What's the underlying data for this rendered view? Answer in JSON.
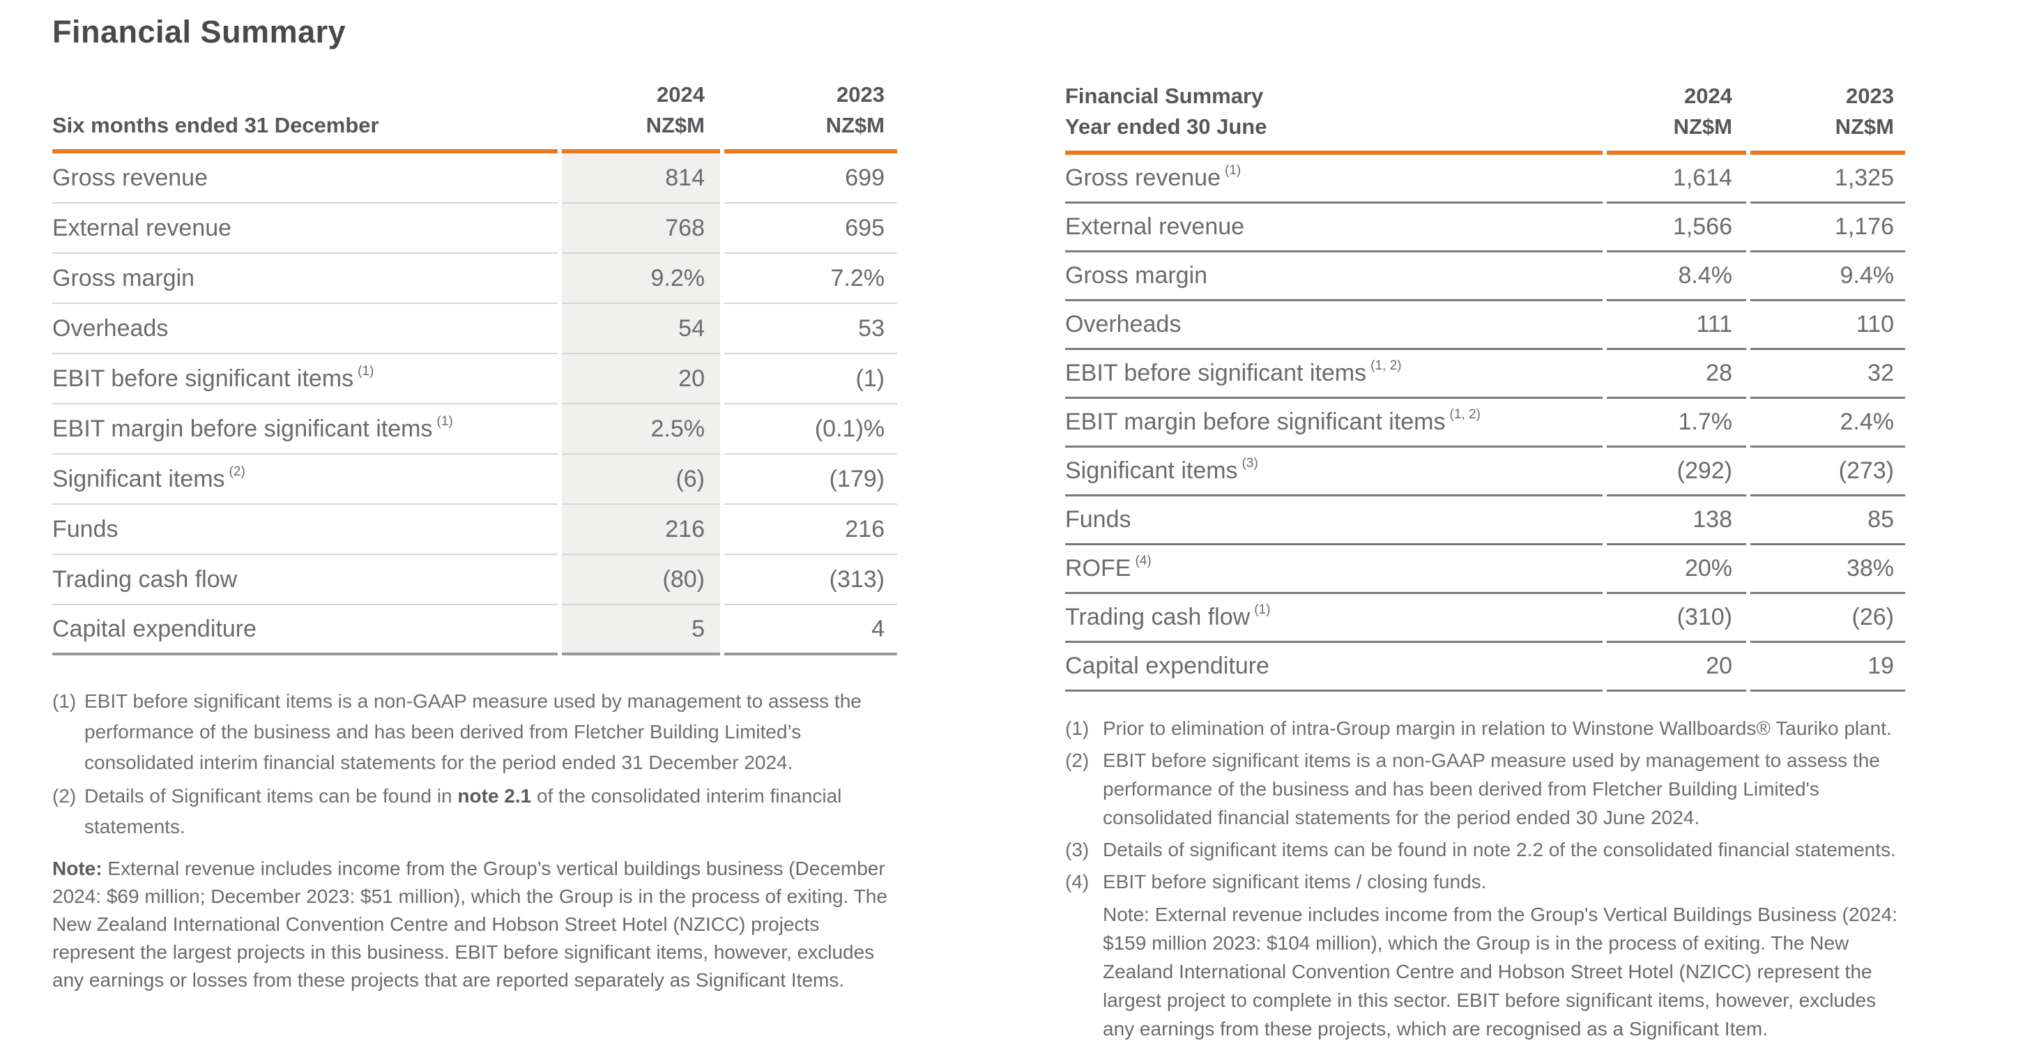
{
  "colors": {
    "accent_orange": "#E87722",
    "highlight_column_grey": "#F0F0EF",
    "divider_light_grey": "#D6D6D6",
    "divider_dark_grey": "#78797C",
    "body_text_grey": "#6A6B6E",
    "heading_text_grey": "#48494C"
  },
  "left": {
    "title": "Financial Summary",
    "period_label": "Six months ended 31 December",
    "col1": {
      "year": "2024",
      "unit": "NZ$M"
    },
    "col2": {
      "year": "2023",
      "unit": "NZ$M"
    },
    "rows": [
      {
        "label": "Gross revenue",
        "sup": "",
        "v1": "814",
        "v2": "699"
      },
      {
        "label": "External revenue",
        "sup": "",
        "v1": "768",
        "v2": "695"
      },
      {
        "label": "Gross margin",
        "sup": "",
        "v1": "9.2%",
        "v2": "7.2%"
      },
      {
        "label": "Overheads",
        "sup": "",
        "v1": "54",
        "v2": "53"
      },
      {
        "label": "EBIT before significant items",
        "sup": "(1)",
        "v1": "20",
        "v2": "(1)"
      },
      {
        "label": "EBIT margin before significant items",
        "sup": "(1)",
        "v1": "2.5%",
        "v2": "(0.1)%"
      },
      {
        "label": "Significant items",
        "sup": "(2)",
        "v1": "(6)",
        "v2": "(179)"
      },
      {
        "label": "Funds",
        "sup": "",
        "v1": "216",
        "v2": "216"
      },
      {
        "label": "Trading cash flow",
        "sup": "",
        "v1": "(80)",
        "v2": "(313)"
      },
      {
        "label": "Capital expenditure",
        "sup": "",
        "v1": "5",
        "v2": "4"
      }
    ],
    "fn1": {
      "marker": "(1)",
      "text": "EBIT before significant items is a non-GAAP measure used by management to assess the performance of the business and has been derived from Fletcher Building Limited’s consolidated interim financial statements for the period ended 31 December 2024."
    },
    "fn2": {
      "marker": "(2)",
      "pre": "Details of Significant items can be found in ",
      "bold": "note 2.1",
      "post": " of the consolidated interim financial statements."
    },
    "note": {
      "label": "Note:",
      "text": " External revenue includes income from the Group’s vertical buildings business (December 2024: $69 million; December 2023: $51 million), which the Group is in the process of exiting. The New Zealand International Convention Centre and Hobson Street Hotel (NZICC) projects represent the largest projects in this business. EBIT before significant items, however, excludes any earnings or losses from these projects that are reported separately as Significant Items."
    }
  },
  "right": {
    "header_line1": "Financial Summary",
    "header_line2": "Year ended 30 June",
    "col1": {
      "year": "2024",
      "unit": "NZ$M"
    },
    "col2": {
      "year": "2023",
      "unit": "NZ$M"
    },
    "rows": [
      {
        "label": "Gross revenue",
        "sup": "(1)",
        "v1": "1,614",
        "v2": "1,325"
      },
      {
        "label": "External revenue",
        "sup": "",
        "v1": "1,566",
        "v2": "1,176"
      },
      {
        "label": "Gross margin",
        "sup": "",
        "v1": "8.4%",
        "v2": "9.4%"
      },
      {
        "label": "Overheads",
        "sup": "",
        "v1": "111",
        "v2": "110"
      },
      {
        "label": "EBIT before significant items",
        "sup": "(1, 2)",
        "v1": "28",
        "v2": "32"
      },
      {
        "label": "EBIT margin before significant items",
        "sup": "(1, 2)",
        "v1": "1.7%",
        "v2": "2.4%"
      },
      {
        "label": "Significant items",
        "sup": "(3)",
        "v1": "(292)",
        "v2": "(273)"
      },
      {
        "label": "Funds",
        "sup": "",
        "v1": "138",
        "v2": "85"
      },
      {
        "label": "ROFE",
        "sup": "(4)",
        "v1": "20%",
        "v2": "38%"
      },
      {
        "label": "Trading cash flow",
        "sup": "(1)",
        "v1": "(310)",
        "v2": "(26)"
      },
      {
        "label": "Capital expenditure",
        "sup": "",
        "v1": "20",
        "v2": "19"
      }
    ],
    "fns": [
      {
        "marker": "(1)",
        "text": "Prior to elimination of intra-Group margin in relation to Winstone Wallboards® Tauriko plant."
      },
      {
        "marker": "(2)",
        "text": "EBIT before significant items is a non-GAAP measure used by management to assess the performance of the business and has been derived from Fletcher Building Limited's consolidated financial statements for the period ended 30 June 2024."
      },
      {
        "marker": "(3)",
        "text": "Details of significant items can be found in note 2.2 of the consolidated financial statements."
      },
      {
        "marker": "(4)",
        "text": "EBIT before significant items / closing funds."
      }
    ],
    "note": "Note: External revenue includes income from the Group's Vertical Buildings Business (2024: $159 million 2023: $104 million), which the Group is in the process of exiting. The New Zealand International Convention Centre and Hobson Street Hotel (NZICC) represent the largest project to complete in this sector. EBIT before significant items, however, excludes any earnings from these projects, which are recognised as a Significant Item."
  }
}
